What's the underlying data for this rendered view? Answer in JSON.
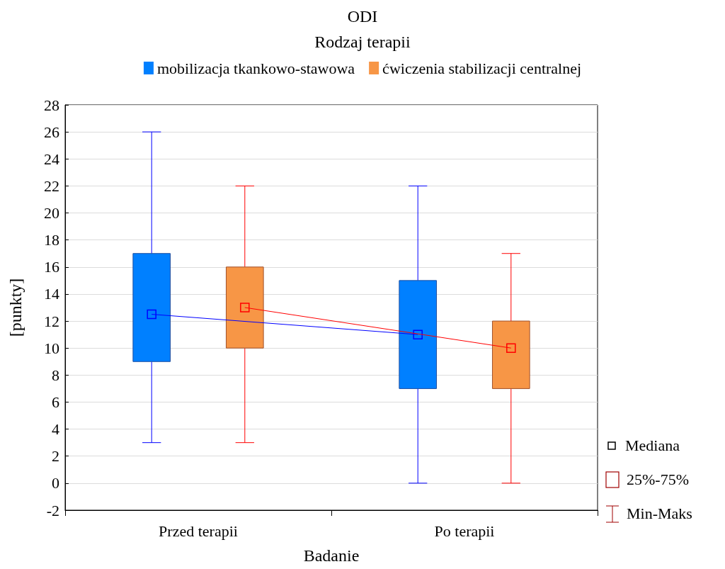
{
  "chart_data": {
    "type": "box",
    "title": "ODI",
    "legend_title": "Rodzaj terapii",
    "xlabel": "Badanie",
    "ylabel": "[punkty]",
    "categories": [
      "Przed terapii",
      "Po terapii"
    ],
    "series": [
      {
        "name": "mobilizacja tkankowo-stawowa",
        "color": "#0080ff",
        "boxes": [
          {
            "low": 3,
            "q1": 9,
            "median": 12.5,
            "q3": 17,
            "high": 26
          },
          {
            "low": 0,
            "q1": 7,
            "median": 11,
            "q3": 15,
            "high": 22
          }
        ]
      },
      {
        "name": "ćwiczenia stabilizacji centralnej",
        "color": "#f79646",
        "boxes": [
          {
            "low": 3,
            "q1": 10,
            "median": 13,
            "q3": 16,
            "high": 22
          },
          {
            "low": 0,
            "q1": 7,
            "median": 10,
            "q3": 12,
            "high": 17
          }
        ]
      },
      {
        "type": "line",
        "color": "#0000ff",
        "values": [
          12.5,
          11
        ]
      },
      {
        "type": "line",
        "color": "#ff0000",
        "values": [
          13,
          10
        ]
      }
    ],
    "ylim": [
      -2,
      28
    ],
    "yticks": [
      -2,
      0,
      2,
      4,
      6,
      8,
      10,
      12,
      14,
      16,
      18,
      20,
      22,
      24,
      26,
      28
    ],
    "grid": "y",
    "legend": "top",
    "annotations": [
      "Mediana",
      "25%-75%",
      "Min-Maks"
    ]
  }
}
